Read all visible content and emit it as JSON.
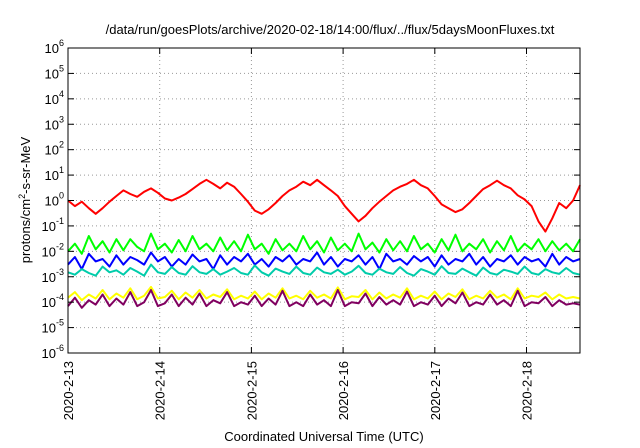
{
  "chart_data": {
    "type": "line",
    "title": "/data/run/goesPlots/archive/2020-02-18/14:00/flux/../flux/5daysMoonFluxes.txt",
    "xlabel": "Coordinated Universal Time (UTC)",
    "ylabel": "protons/cm2-s-sr-MeV",
    "ylabel_parts": {
      "pre": "protons/cm",
      "sup": "2",
      "post": "-s-sr-MeV"
    },
    "y_scale": "log",
    "ylim": [
      1e-06,
      1000000.0
    ],
    "y_ticks": [
      {
        "base": "10",
        "exp": "-6",
        "value": 1e-06
      },
      {
        "base": "10",
        "exp": "-5",
        "value": 1e-05
      },
      {
        "base": "10",
        "exp": "-4",
        "value": 0.0001
      },
      {
        "base": "10",
        "exp": "-3",
        "value": 0.001
      },
      {
        "base": "10",
        "exp": "-2",
        "value": 0.01
      },
      {
        "base": "10",
        "exp": "-1",
        "value": 0.1
      },
      {
        "base": "10",
        "exp": "0",
        "value": 1
      },
      {
        "base": "10",
        "exp": "1",
        "value": 10
      },
      {
        "base": "10",
        "exp": "2",
        "value": 100
      },
      {
        "base": "10",
        "exp": "3",
        "value": 1000
      },
      {
        "base": "10",
        "exp": "4",
        "value": 10000
      },
      {
        "base": "10",
        "exp": "5",
        "value": 100000
      },
      {
        "base": "10",
        "exp": "6",
        "value": 1000000
      }
    ],
    "xlim": [
      "2020-02-13",
      "2020-02-18 14:00"
    ],
    "x_ticks": [
      "2020-2-13",
      "2020-2-14",
      "2020-2-15",
      "2020-2-16",
      "2020-2-17",
      "2020-2-18"
    ],
    "grid": true,
    "legend": "none",
    "series": [
      {
        "color": "#ff0000",
        "values": [
          1.0,
          0.6,
          0.9,
          0.5,
          0.3,
          0.5,
          0.9,
          1.5,
          2.5,
          1.8,
          1.4,
          2.2,
          3.0,
          2.0,
          1.2,
          1.0,
          1.3,
          1.8,
          2.8,
          4.5,
          6.5,
          4.5,
          3.0,
          5.0,
          3.5,
          1.8,
          0.9,
          0.4,
          0.3,
          0.45,
          0.8,
          1.5,
          2.5,
          3.5,
          5.5,
          4.0,
          6.5,
          4.0,
          2.5,
          1.5,
          0.6,
          0.3,
          0.15,
          0.25,
          0.5,
          0.9,
          1.5,
          2.5,
          3.5,
          4.5,
          6.5,
          4.0,
          3.0,
          1.5,
          0.7,
          0.5,
          0.35,
          0.45,
          0.8,
          1.5,
          2.8,
          4.0,
          6.0,
          4.0,
          3.0,
          1.6,
          1.1,
          0.6,
          0.15,
          0.06,
          0.2,
          0.8,
          0.5,
          1.0,
          4.0
        ]
      },
      {
        "color": "#00ff00",
        "values": [
          0.01,
          0.02,
          0.008,
          0.04,
          0.012,
          0.025,
          0.009,
          0.03,
          0.011,
          0.03,
          0.015,
          0.01,
          0.05,
          0.012,
          0.02,
          0.009,
          0.028,
          0.01,
          0.04,
          0.012,
          0.02,
          0.01,
          0.035,
          0.011,
          0.025,
          0.01,
          0.045,
          0.012,
          0.02,
          0.008,
          0.03,
          0.011,
          0.02,
          0.01,
          0.04,
          0.012,
          0.025,
          0.009,
          0.035,
          0.011,
          0.02,
          0.01,
          0.05,
          0.012,
          0.022,
          0.009,
          0.03,
          0.011,
          0.025,
          0.01,
          0.04,
          0.012,
          0.02,
          0.009,
          0.03,
          0.011,
          0.045,
          0.01,
          0.02,
          0.012,
          0.03,
          0.009,
          0.025,
          0.011,
          0.04,
          0.01,
          0.02,
          0.012,
          0.03,
          0.01,
          0.025,
          0.011,
          0.02,
          0.01,
          0.03
        ]
      },
      {
        "color": "#0000ff",
        "values": [
          0.003,
          0.006,
          0.002,
          0.008,
          0.004,
          0.005,
          0.0025,
          0.007,
          0.003,
          0.006,
          0.0045,
          0.003,
          0.009,
          0.004,
          0.006,
          0.0025,
          0.005,
          0.003,
          0.0075,
          0.004,
          0.005,
          0.002,
          0.007,
          0.003,
          0.006,
          0.004,
          0.008,
          0.003,
          0.005,
          0.0025,
          0.006,
          0.004,
          0.007,
          0.003,
          0.005,
          0.004,
          0.009,
          0.003,
          0.006,
          0.0025,
          0.005,
          0.004,
          0.007,
          0.003,
          0.006,
          0.002,
          0.008,
          0.004,
          0.005,
          0.003,
          0.0065,
          0.004,
          0.006,
          0.0025,
          0.007,
          0.003,
          0.005,
          0.004,
          0.008,
          0.003,
          0.006,
          0.0025,
          0.005,
          0.004,
          0.007,
          0.003,
          0.006,
          0.004,
          0.005,
          0.0025,
          0.008,
          0.003,
          0.006,
          0.004,
          0.005
        ]
      },
      {
        "color": "#00ccaa",
        "values": [
          0.0015,
          0.0012,
          0.002,
          0.0014,
          0.0011,
          0.0025,
          0.0015,
          0.0018,
          0.0012,
          0.0022,
          0.0016,
          0.0011,
          0.003,
          0.0015,
          0.0013,
          0.0024,
          0.0014,
          0.0012,
          0.0026,
          0.0015,
          0.0013,
          0.002,
          0.0012,
          0.0016,
          0.0022,
          0.0014,
          0.0012,
          0.0028,
          0.0015,
          0.0011,
          0.0021,
          0.0016,
          0.0013,
          0.0025,
          0.0014,
          0.0012,
          0.0023,
          0.0015,
          0.0013,
          0.0019,
          0.0012,
          0.0016,
          0.0027,
          0.0014,
          0.0012,
          0.0021,
          0.0015,
          0.0013,
          0.0024,
          0.0014,
          0.0011,
          0.002,
          0.0016,
          0.0012,
          0.0026,
          0.0014,
          0.0013,
          0.0021,
          0.0015,
          0.0011,
          0.0023,
          0.0014,
          0.0012,
          0.0019,
          0.0016,
          0.0013,
          0.0025,
          0.0014,
          0.0012,
          0.002,
          0.0015,
          0.0013,
          0.0022,
          0.0014,
          0.0012
        ]
      },
      {
        "color": "#ffff00",
        "values": [
          0.00015,
          0.00025,
          0.00012,
          0.0002,
          0.00014,
          0.0003,
          0.00013,
          0.00022,
          0.00015,
          0.00035,
          0.00013,
          0.00018,
          0.0004,
          0.00014,
          0.00016,
          0.00028,
          0.00013,
          0.00024,
          0.00015,
          0.0003,
          0.00014,
          0.0002,
          0.00016,
          0.00032,
          0.00013,
          0.00018,
          0.00014,
          0.00026,
          0.00013,
          0.00022,
          0.00015,
          0.00035,
          0.00014,
          0.00018,
          0.00013,
          0.00028,
          0.00015,
          0.0002,
          0.00014,
          0.00038,
          0.00013,
          0.00017,
          0.00016,
          0.0003,
          0.00013,
          0.00024,
          0.00014,
          0.0002,
          0.00015,
          0.00035,
          0.00013,
          0.00018,
          0.00014,
          0.00026,
          0.00013,
          0.00022,
          0.00016,
          0.00032,
          0.00013,
          0.00018,
          0.00014,
          0.00028,
          0.00015,
          0.0002,
          0.00013,
          0.00035,
          0.00014,
          0.00018,
          0.00016,
          0.00024,
          0.00013,
          0.0002,
          0.00014,
          0.00016,
          0.00014
        ]
      },
      {
        "color": "#800060",
        "values": [
          7e-05,
          0.00015,
          6e-05,
          0.00012,
          8e-05,
          0.0002,
          7e-05,
          0.00014,
          8e-05,
          0.00025,
          7e-05,
          0.0001,
          0.0003,
          7e-05,
          9e-05,
          0.0002,
          7e-05,
          0.00015,
          8e-05,
          0.00022,
          7e-05,
          0.00012,
          9e-05,
          0.00025,
          7e-05,
          0.0001,
          8e-05,
          0.00018,
          7e-05,
          0.00014,
          8e-05,
          0.00028,
          7e-05,
          0.0001,
          7e-05,
          0.0002,
          8e-05,
          0.00012,
          7e-05,
          0.0003,
          7e-05,
          0.0001,
          9e-05,
          0.00022,
          7e-05,
          0.00016,
          8e-05,
          0.00012,
          8e-05,
          0.00026,
          7e-05,
          0.0001,
          8e-05,
          0.00018,
          7e-05,
          0.00014,
          9e-05,
          0.00024,
          7e-05,
          0.0001,
          8e-05,
          0.0002,
          8e-05,
          0.00012,
          7e-05,
          0.00028,
          7e-05,
          0.0001,
          9e-05,
          0.00016,
          7e-05,
          0.00012,
          8e-05,
          9e-05,
          8e-05
        ]
      }
    ]
  }
}
